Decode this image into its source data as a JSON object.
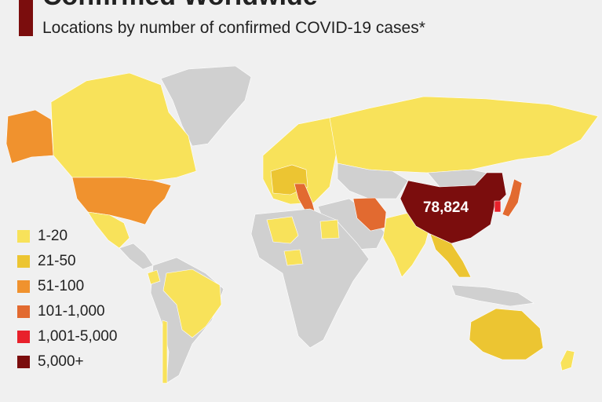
{
  "header": {
    "title": "Confirmed Worldwide",
    "subtitle": "Locations by number of confirmed COVID-19 cases*"
  },
  "colors": {
    "background": "#f0f0f0",
    "no_cases": "#d0d0d0",
    "accent": "#7b0d0d"
  },
  "legend": {
    "items": [
      {
        "label": "1-20",
        "color": "#f8e25a"
      },
      {
        "label": "21-50",
        "color": "#ecc532"
      },
      {
        "label": "51-100",
        "color": "#f0922e"
      },
      {
        "label": "101-1,000",
        "color": "#e26a30"
      },
      {
        "label": "1,001-5,000",
        "color": "#e8212b"
      },
      {
        "label": "5,000+",
        "color": "#7b0d0d"
      }
    ]
  },
  "map": {
    "highlight_label": "78,824",
    "regions": [
      {
        "name": "greenland",
        "category": "none"
      },
      {
        "name": "canada",
        "category": "1-20"
      },
      {
        "name": "alaska",
        "category": "51-100"
      },
      {
        "name": "usa",
        "category": "51-100"
      },
      {
        "name": "mexico",
        "category": "1-20"
      },
      {
        "name": "central-america",
        "category": "none"
      },
      {
        "name": "south-america",
        "category": "none"
      },
      {
        "name": "brazil",
        "category": "1-20"
      },
      {
        "name": "chile",
        "category": "1-20"
      },
      {
        "name": "ecuador",
        "category": "1-20"
      },
      {
        "name": "europe",
        "category": "1-20"
      },
      {
        "name": "france-germany",
        "category": "21-50"
      },
      {
        "name": "italy",
        "category": "101-1,000"
      },
      {
        "name": "russia",
        "category": "1-20"
      },
      {
        "name": "africa",
        "category": "none"
      },
      {
        "name": "algeria",
        "category": "1-20"
      },
      {
        "name": "egypt",
        "category": "1-20"
      },
      {
        "name": "nigeria",
        "category": "1-20"
      },
      {
        "name": "middle-east",
        "category": "none"
      },
      {
        "name": "iran",
        "category": "101-1,000"
      },
      {
        "name": "india",
        "category": "1-20"
      },
      {
        "name": "central-asia",
        "category": "none"
      },
      {
        "name": "mongolia",
        "category": "none"
      },
      {
        "name": "china",
        "category": "5,000+"
      },
      {
        "name": "south-korea",
        "category": "1,001-5,000"
      },
      {
        "name": "japan",
        "category": "101-1,000"
      },
      {
        "name": "southeast-asia",
        "category": "21-50"
      },
      {
        "name": "indonesia",
        "category": "none"
      },
      {
        "name": "australia",
        "category": "21-50"
      },
      {
        "name": "new-zealand",
        "category": "1-20"
      }
    ]
  }
}
